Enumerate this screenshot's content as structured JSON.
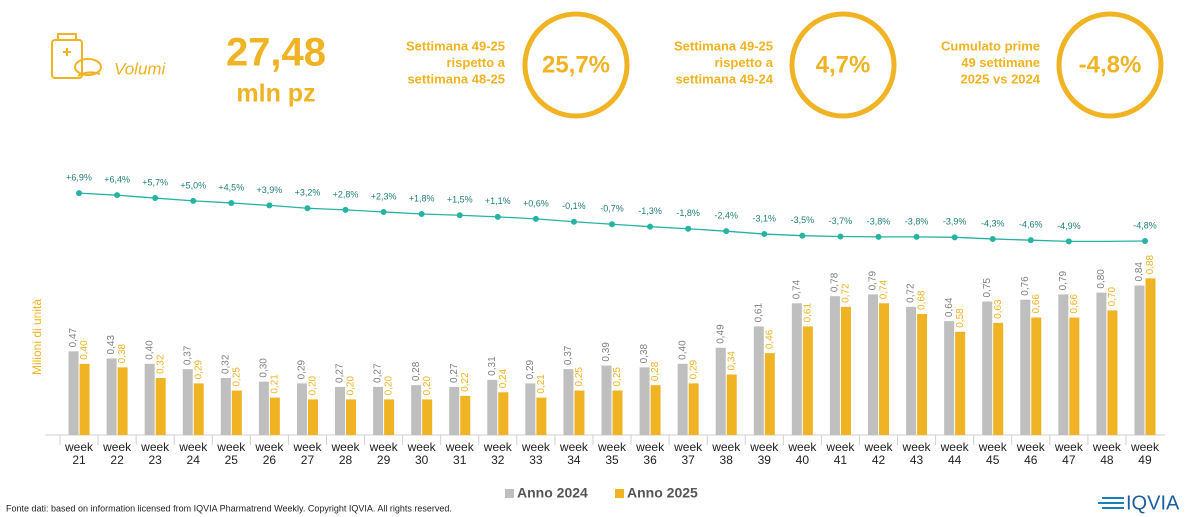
{
  "header": {
    "icon_label": "Volumi",
    "total_value": "27,48",
    "total_unit": "mln pz",
    "kpis": [
      {
        "lines": [
          "Settimana 49-25",
          "rispetto a",
          "settimana 48-25"
        ],
        "value": "25,7%"
      },
      {
        "lines": [
          "Settimana 49-25",
          "rispetto a",
          "settimana 49-24"
        ],
        "value": "4,7%"
      },
      {
        "lines": [
          "Cumulato prime",
          "49 settimane",
          "2025 vs 2024"
        ],
        "value": "-4,8%"
      }
    ]
  },
  "chart_data": {
    "type": "bar",
    "y_label": "Milioni di unità",
    "categories": [
      "week 21",
      "week 22",
      "week 23",
      "week 24",
      "week 25",
      "week 26",
      "week 27",
      "week 28",
      "week 29",
      "week 30",
      "week 31",
      "week 32",
      "week 33",
      "week 34",
      "week 35",
      "week 36",
      "week 37",
      "week 38",
      "week 39",
      "week 40",
      "week 41",
      "week 42",
      "week 43",
      "week 44",
      "week 45",
      "week 46",
      "week 47",
      "week 48",
      "week 49"
    ],
    "ylim": [
      0,
      1
    ],
    "y2lim": [
      -7,
      15
    ],
    "series": [
      {
        "name": "Anno 2024",
        "color": "#bfbfbf",
        "values": [
          0.47,
          0.43,
          0.4,
          0.37,
          0.32,
          0.3,
          0.29,
          0.27,
          0.27,
          0.28,
          0.27,
          0.31,
          0.29,
          0.37,
          0.39,
          0.38,
          0.4,
          0.49,
          0.61,
          0.74,
          0.78,
          0.79,
          0.72,
          0.64,
          0.75,
          0.76,
          0.79,
          0.8,
          0.84
        ],
        "value_labels": [
          "0,47",
          "0,43",
          "0,40",
          "0,37",
          "0,32",
          "0,30",
          "0,29",
          "0,27",
          "0,27",
          "0,28",
          "0,27",
          "0,31",
          "0,29",
          "0,37",
          "0,39",
          "0,38",
          "0,40",
          "0,49",
          "0,61",
          "0,74",
          "0,78",
          "0,79",
          "0,72",
          "0,64",
          "0,75",
          "0,76",
          "0,79",
          "0,80",
          "0,84"
        ]
      },
      {
        "name": "Anno 2025",
        "color": "#f0b323",
        "values": [
          0.4,
          0.38,
          0.32,
          0.29,
          0.25,
          0.21,
          0.2,
          0.2,
          0.2,
          0.2,
          0.22,
          0.24,
          0.21,
          0.25,
          0.25,
          0.28,
          0.29,
          0.34,
          0.46,
          0.61,
          0.72,
          0.74,
          0.68,
          0.58,
          0.63,
          0.66,
          0.66,
          0.7,
          0.88
        ],
        "value_labels": [
          "0,40",
          "0,38",
          "0,32",
          "0,29",
          "0,25",
          "0,21",
          "0,20",
          "0,20",
          "0,20",
          "0,20",
          "0,22",
          "0,24",
          "0,21",
          "0,25",
          "0,25",
          "0,28",
          "0,29",
          "0,34",
          "0,46",
          "0,61",
          "0,72",
          "0,74",
          "0,68",
          "0,58",
          "0,63",
          "0,66",
          "0,66",
          "0,70",
          "0,88"
        ]
      },
      {
        "type": "line",
        "axis": "y2",
        "color": "#26b3a3",
        "values": [
          6.9,
          6.4,
          5.7,
          5.0,
          4.5,
          3.9,
          3.2,
          2.8,
          2.3,
          1.8,
          1.5,
          1.1,
          0.6,
          -0.1,
          -0.7,
          -1.3,
          -1.8,
          -2.4,
          -3.1,
          -3.5,
          -3.7,
          -3.8,
          -3.8,
          -3.9,
          -4.3,
          -4.6,
          -4.9,
          -4.9,
          -4.8
        ],
        "value_labels": [
          "+6,9%",
          "+6,4%",
          "+5,7%",
          "+5,0%",
          "+4,5%",
          "+3,9%",
          "+3,2%",
          "+2,8%",
          "+2,3%",
          "+1,8%",
          "+1,5%",
          "+1,1%",
          "+0,6%",
          "-0,1%",
          "-0,7%",
          "-1,3%",
          "-1,8%",
          "-2,4%",
          "-3,1%",
          "-3,5%",
          "-3,7%",
          "-3,8%",
          "-3,8%",
          "-3,9%",
          "-4,3%",
          "-4,6%",
          "-4,9%",
          null,
          "-4,8%"
        ]
      }
    ]
  },
  "footer": {
    "source": "Fonte dati: based on information licensed from IQVIA Pharmatrend Weekly. Copyright IQVIA. All rights reserved.",
    "logo": "IQVIA"
  }
}
